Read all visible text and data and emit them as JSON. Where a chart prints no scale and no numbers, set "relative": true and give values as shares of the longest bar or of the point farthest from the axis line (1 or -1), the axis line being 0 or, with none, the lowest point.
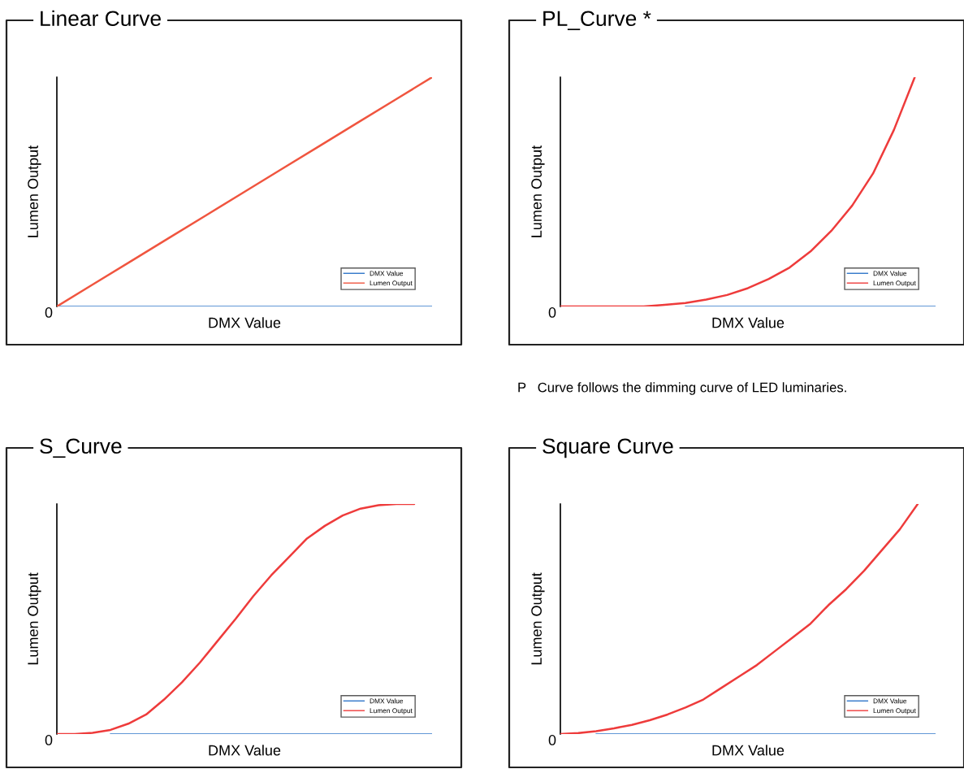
{
  "chart_data": [
    {
      "type": "line",
      "title": "Linear Curve",
      "xlabel": "DMX Value",
      "ylabel": "Lumen Output",
      "relative": true,
      "legend": "bottom right",
      "categories": [
        null,
        null,
        null,
        null,
        null,
        null,
        null,
        null,
        null,
        null,
        null
      ],
      "series": [
        {
          "name": "DMX Value",
          "color": "#2e75c9",
          "values": [
            0,
            0,
            0,
            0,
            0,
            0,
            0,
            0,
            0,
            0,
            0
          ]
        },
        {
          "name": "Lumen Output",
          "color": "#f0553f",
          "values": [
            0,
            0.1,
            0.2,
            0.3,
            0.4,
            0.5,
            0.6,
            0.7,
            0.8,
            0.9,
            1
          ]
        }
      ],
      "annotations": [
        "0"
      ]
    },
    {
      "type": "line",
      "title": "PL_Curve *",
      "xlabel": "DMX Value",
      "ylabel": "Lumen Output",
      "relative": true,
      "legend": "bottom right",
      "categories": [
        null,
        null,
        null,
        null,
        null,
        null,
        null,
        null,
        null,
        null,
        null,
        null,
        null,
        null,
        null,
        null,
        null,
        null,
        null
      ],
      "series": [
        {
          "name": "DMX Value",
          "color": "#2e75c9",
          "values": [
            null,
            null,
            null,
            null,
            null,
            null,
            0,
            0,
            0,
            0,
            0,
            0,
            0,
            0,
            0,
            0,
            0,
            0,
            0
          ]
        },
        {
          "name": "Lumen Output",
          "color": "#ee3b3b",
          "values": [
            0,
            0,
            0,
            0,
            0,
            0.007,
            0.015,
            0.03,
            0.05,
            0.08,
            0.12,
            0.17,
            0.24,
            0.33,
            0.44,
            0.58,
            0.77,
            1,
            null
          ]
        }
      ],
      "annotations": [
        "0",
        "P   Curve follows the dimming curve of LED luminaries."
      ]
    },
    {
      "type": "line",
      "title": "S_Curve",
      "xlabel": "DMX Value",
      "ylabel": "Lumen Output",
      "relative": true,
      "legend": "bottom right",
      "categories": [
        null,
        null,
        null,
        null,
        null,
        null,
        null,
        null,
        null,
        null,
        null,
        null,
        null,
        null,
        null,
        null,
        null,
        null,
        null,
        null,
        null,
        null
      ],
      "series": [
        {
          "name": "DMX Value",
          "color": "#2e75c9",
          "values": [
            null,
            null,
            null,
            0,
            0,
            0,
            0,
            0,
            0,
            0,
            0,
            0,
            0,
            0,
            0,
            0,
            0,
            0,
            0,
            0,
            0,
            0
          ]
        },
        {
          "name": "Lumen Output",
          "color": "#ee3b3b",
          "values": [
            0,
            0,
            0.005,
            0.018,
            0.045,
            0.085,
            0.15,
            0.225,
            0.31,
            0.405,
            0.5,
            0.6,
            0.69,
            0.77,
            0.85,
            0.905,
            0.95,
            0.98,
            0.995,
            1,
            1,
            null
          ]
        }
      ],
      "annotations": [
        "0"
      ]
    },
    {
      "type": "line",
      "title": "Square Curve",
      "xlabel": "DMX Value",
      "ylabel": "Lumen Output",
      "relative": true,
      "legend": "bottom right",
      "categories": [
        null,
        null,
        null,
        null,
        null,
        null,
        null,
        null,
        null,
        null,
        null,
        null,
        null,
        null,
        null,
        null,
        null,
        null,
        null,
        null,
        null,
        null
      ],
      "series": [
        {
          "name": "DMX Value",
          "color": "#2e75c9",
          "values": [
            null,
            null,
            0,
            0,
            0,
            0,
            0,
            0,
            0,
            0,
            0,
            0,
            0,
            0,
            0,
            0,
            0,
            0,
            0,
            0,
            0,
            0
          ]
        },
        {
          "name": "Lumen Output",
          "color": "#ee3b3b",
          "values": [
            0,
            0.004,
            0.012,
            0.025,
            0.04,
            0.06,
            0.085,
            0.115,
            0.15,
            0.2,
            0.25,
            0.3,
            0.36,
            0.42,
            0.48,
            0.56,
            0.63,
            0.71,
            0.8,
            0.89,
            1,
            null
          ]
        }
      ],
      "annotations": [
        "0"
      ]
    }
  ]
}
